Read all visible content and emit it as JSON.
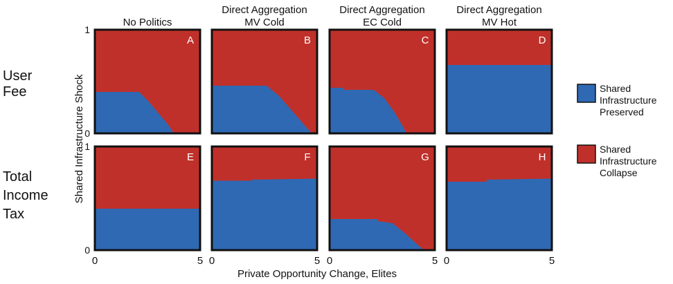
{
  "colors": {
    "preserved": "#2f69b3",
    "collapse": "#c0302a",
    "frame": "#111111",
    "panel_label": "#ffffff"
  },
  "axis": {
    "xlabel": "Private Opportunity Change, Elites",
    "ylabel": "Shared Infrastructure Shock",
    "x_ticks": [
      "0",
      "5"
    ],
    "y_ticks": [
      "0",
      "1"
    ]
  },
  "columns": [
    {
      "line1": "No Politics",
      "line2": ""
    },
    {
      "line1": "Direct Aggregation",
      "line2": "MV Cold"
    },
    {
      "line1": "Direct Aggregation",
      "line2": "EC Cold"
    },
    {
      "line1": "Direct Aggregation",
      "line2": "MV Hot"
    }
  ],
  "rows": [
    {
      "lines": [
        "User",
        "Fee"
      ]
    },
    {
      "lines": [
        "Total",
        "Income",
        "Tax"
      ]
    }
  ],
  "legend": [
    {
      "key": "preserved",
      "lines": [
        "Shared",
        "Infrastructure",
        "Preserved"
      ]
    },
    {
      "key": "collapse",
      "lines": [
        "Shared",
        "Infrastructure",
        "Collapse"
      ]
    }
  ],
  "chart_data": {
    "type": "heatmap",
    "description_of_values": "Each panel: region in (x, y) where shared infrastructure is preserved (boundary below which blue); above boundary is collapse (red).",
    "xlim": [
      0,
      5
    ],
    "ylim": [
      0,
      1
    ],
    "panels": [
      {
        "label": "A",
        "row": 0,
        "col": 0,
        "preserved_boundary": [
          [
            0,
            0.4
          ],
          [
            2.1,
            0.4
          ],
          [
            2.5,
            0.32
          ],
          [
            3.0,
            0.2
          ],
          [
            3.5,
            0.08
          ],
          [
            3.75,
            0.0
          ]
        ]
      },
      {
        "label": "B",
        "row": 0,
        "col": 1,
        "preserved_boundary": [
          [
            0,
            0.46
          ],
          [
            2.6,
            0.46
          ],
          [
            3.2,
            0.36
          ],
          [
            3.8,
            0.22
          ],
          [
            4.4,
            0.08
          ],
          [
            4.75,
            0.0
          ]
        ]
      },
      {
        "label": "C",
        "row": 0,
        "col": 2,
        "preserved_boundary": [
          [
            0,
            0.44
          ],
          [
            0.6,
            0.44
          ],
          [
            0.7,
            0.42
          ],
          [
            2.1,
            0.42
          ],
          [
            2.6,
            0.34
          ],
          [
            3.1,
            0.2
          ],
          [
            3.5,
            0.06
          ],
          [
            3.65,
            0.0
          ]
        ]
      },
      {
        "label": "D",
        "row": 0,
        "col": 3,
        "preserved_boundary": [
          [
            0,
            0.66
          ],
          [
            5,
            0.66
          ]
        ]
      },
      {
        "label": "E",
        "row": 1,
        "col": 0,
        "preserved_boundary": [
          [
            0,
            0.4
          ],
          [
            5,
            0.4
          ]
        ],
        "collapse_region": [
          [
            0.0,
            0.9
          ],
          [
            0.3,
            0.75
          ],
          [
            0.8,
            0.62
          ],
          [
            1.6,
            0.52
          ],
          [
            2.3,
            0.45
          ],
          [
            2.7,
            0.41
          ],
          [
            2.7,
            0.4
          ],
          [
            0.0,
            0.4
          ]
        ]
      },
      {
        "label": "F",
        "row": 1,
        "col": 1,
        "preserved_boundary": [
          [
            0,
            0.67
          ],
          [
            1.9,
            0.67
          ],
          [
            1.9,
            0.68
          ],
          [
            5,
            0.69
          ]
        ]
      },
      {
        "label": "G",
        "row": 1,
        "col": 2,
        "preserved_boundary": [
          [
            0,
            0.3
          ],
          [
            2.3,
            0.3
          ],
          [
            2.3,
            0.28
          ],
          [
            3.0,
            0.26
          ],
          [
            3.6,
            0.16
          ],
          [
            4.2,
            0.05
          ],
          [
            4.5,
            0.0
          ]
        ]
      },
      {
        "label": "H",
        "row": 1,
        "col": 3,
        "preserved_boundary": [
          [
            0,
            0.66
          ],
          [
            1.9,
            0.66
          ],
          [
            1.9,
            0.68
          ],
          [
            5,
            0.69
          ]
        ]
      }
    ]
  }
}
